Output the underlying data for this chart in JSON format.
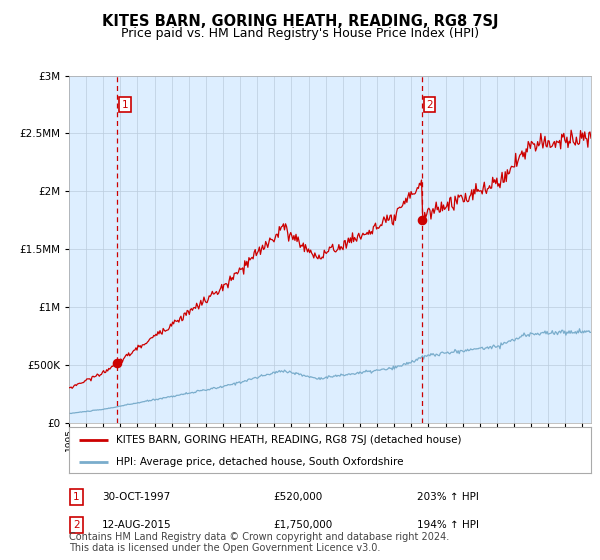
{
  "title": "KITES BARN, GORING HEATH, READING, RG8 7SJ",
  "subtitle": "Price paid vs. HM Land Registry's House Price Index (HPI)",
  "legend_line1": "KITES BARN, GORING HEATH, READING, RG8 7SJ (detached house)",
  "legend_line2": "HPI: Average price, detached house, South Oxfordshire",
  "footnote": "Contains HM Land Registry data © Crown copyright and database right 2024.\nThis data is licensed under the Open Government Licence v3.0.",
  "sale1_date": "30-OCT-1997",
  "sale1_price": 520000,
  "sale1_label": "203% ↑ HPI",
  "sale1_year": 1997.83,
  "sale2_date": "12-AUG-2015",
  "sale2_price": 1750000,
  "sale2_label": "194% ↑ HPI",
  "sale2_year": 2015.62,
  "ylim": [
    0,
    3000000
  ],
  "xlim_start": 1995.0,
  "xlim_end": 2025.5,
  "red_color": "#cc0000",
  "blue_color": "#7aadcc",
  "dashed_color": "#cc0000",
  "bg_color": "#ffffff",
  "chart_bg_color": "#ddeeff",
  "grid_color": "#bbccdd",
  "title_fontsize": 10.5,
  "subtitle_fontsize": 9,
  "legend_fontsize": 8,
  "footnote_fontsize": 7
}
